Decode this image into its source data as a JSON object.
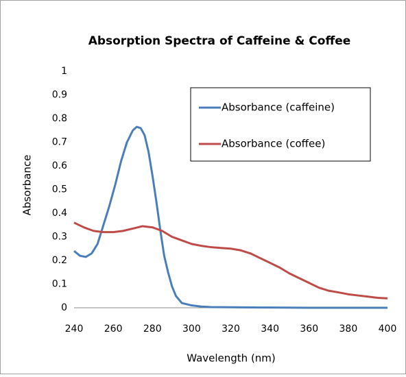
{
  "chart_data": {
    "type": "line",
    "title": "Absorption Spectra of Caffeine & Coffee",
    "x_label": "Wavelength (nm)",
    "y_label": "Absorbance",
    "xlim": [
      240,
      400
    ],
    "ylim": [
      0,
      1
    ],
    "xticks": [
      240,
      260,
      280,
      300,
      320,
      340,
      360,
      380,
      400
    ],
    "yticks": [
      0,
      0.1,
      0.2,
      0.3,
      0.4,
      0.5,
      0.6,
      0.7,
      0.8,
      0.9,
      1
    ],
    "grid": false,
    "legend": "upper right",
    "series": [
      {
        "name": "Absorbance (caffeine)",
        "color": "#4a7ebb",
        "x": [
          240,
          243,
          246,
          249,
          252,
          255,
          258,
          261,
          264,
          267,
          270,
          272,
          274,
          276,
          278,
          280,
          282,
          284,
          286,
          288,
          290,
          292,
          295,
          300,
          305,
          310,
          320,
          340,
          360,
          380,
          400
        ],
        "values": [
          0.24,
          0.22,
          0.215,
          0.23,
          0.27,
          0.35,
          0.43,
          0.52,
          0.62,
          0.7,
          0.75,
          0.765,
          0.76,
          0.73,
          0.66,
          0.56,
          0.45,
          0.33,
          0.22,
          0.15,
          0.09,
          0.05,
          0.02,
          0.01,
          0.005,
          0.003,
          0.002,
          0.001,
          0,
          0,
          0
        ]
      },
      {
        "name": "Absorbance (coffee)",
        "color": "#be4b48",
        "x": [
          240,
          245,
          250,
          255,
          260,
          265,
          270,
          275,
          280,
          285,
          290,
          295,
          300,
          305,
          310,
          315,
          320,
          325,
          330,
          335,
          340,
          345,
          350,
          355,
          360,
          365,
          370,
          375,
          380,
          385,
          390,
          395,
          400
        ],
        "values": [
          0.36,
          0.34,
          0.325,
          0.32,
          0.32,
          0.325,
          0.335,
          0.345,
          0.34,
          0.325,
          0.3,
          0.285,
          0.27,
          0.262,
          0.256,
          0.253,
          0.25,
          0.243,
          0.23,
          0.21,
          0.19,
          0.17,
          0.145,
          0.125,
          0.105,
          0.085,
          0.072,
          0.065,
          0.057,
          0.052,
          0.047,
          0.042,
          0.04
        ]
      }
    ]
  }
}
